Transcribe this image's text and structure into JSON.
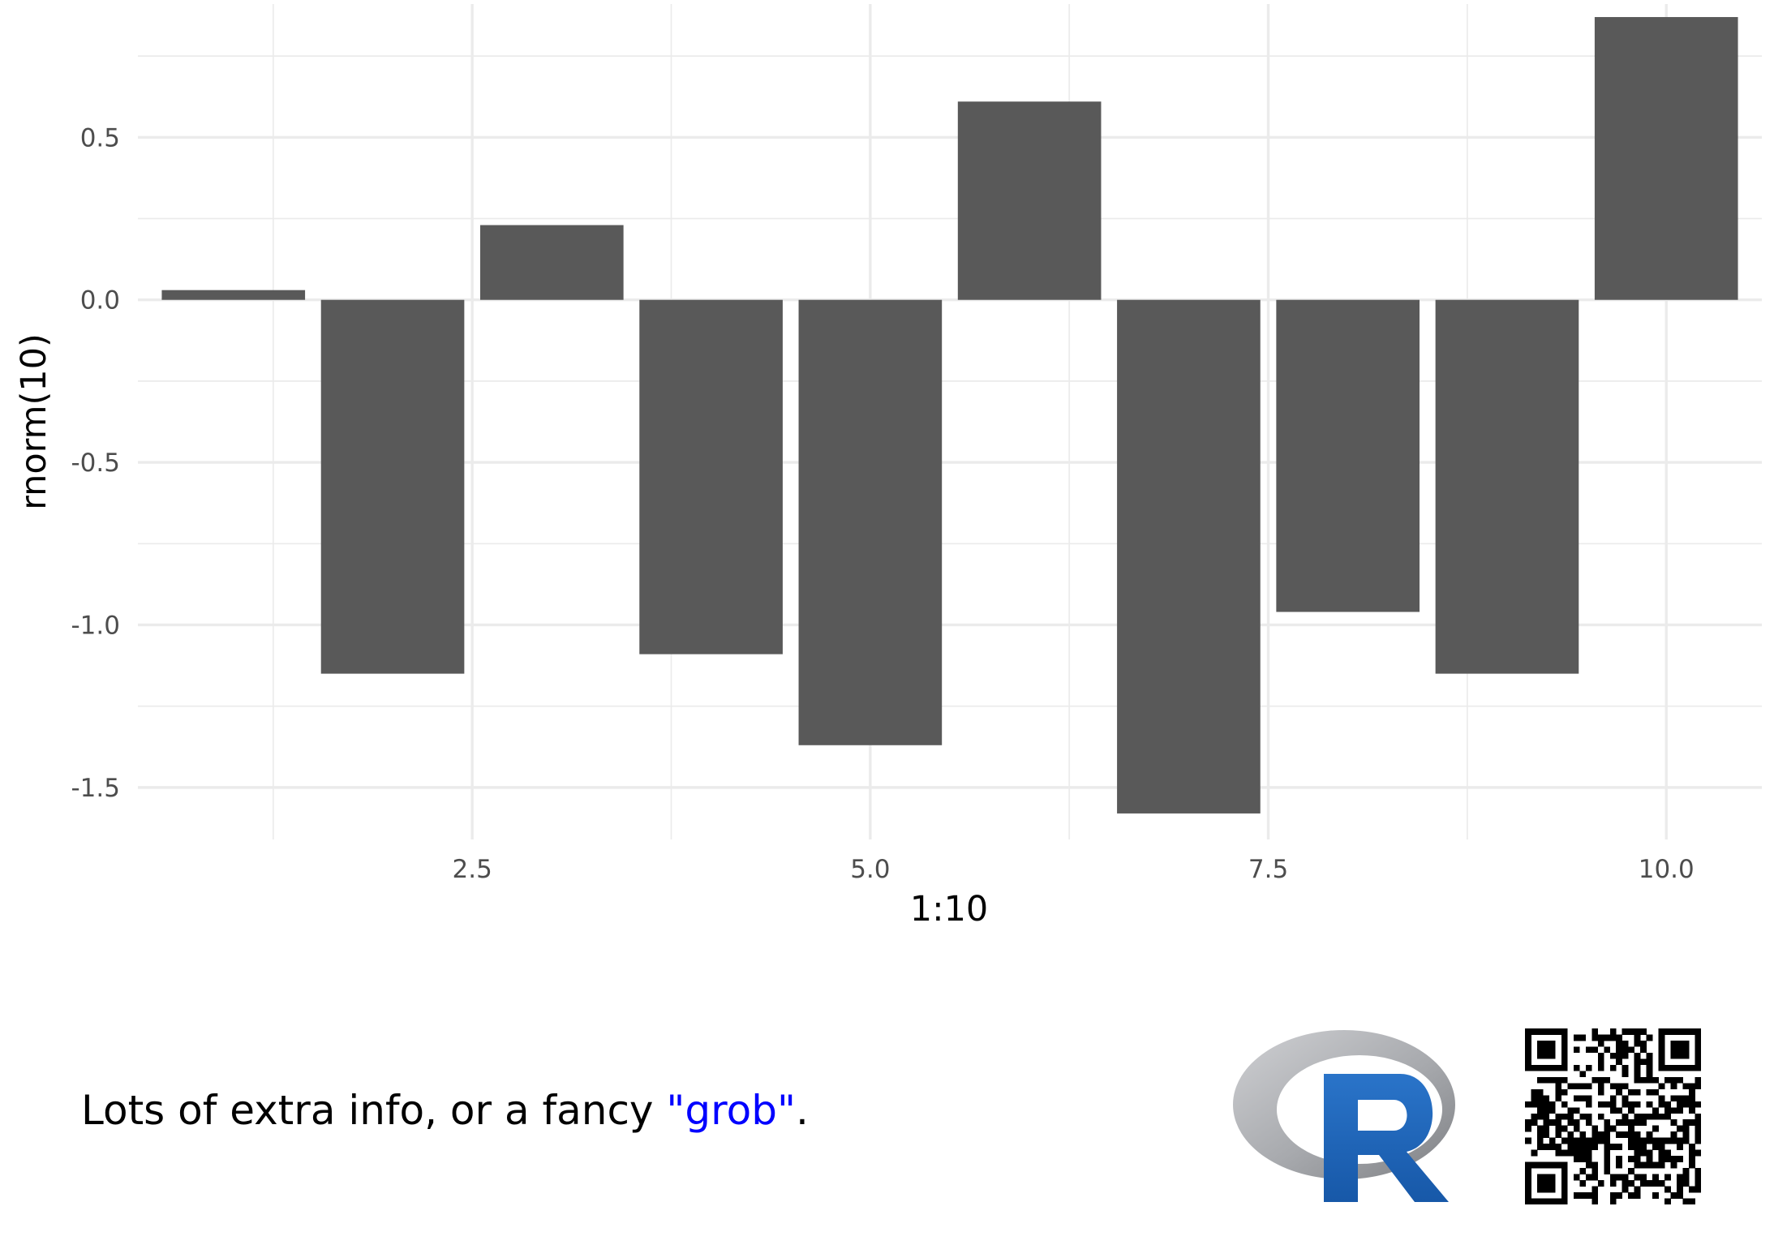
{
  "chart_data": {
    "type": "bar",
    "x": [
      1,
      2,
      3,
      4,
      5,
      6,
      7,
      8,
      9,
      10
    ],
    "values": [
      0.03,
      -1.15,
      0.23,
      -1.09,
      -1.37,
      0.61,
      -1.58,
      -0.96,
      -1.15,
      0.87
    ],
    "xlabel": "1:10",
    "ylabel": "rnorm(10)",
    "x_ticks": [
      "2.5",
      "5.0",
      "7.5",
      "10.0"
    ],
    "y_ticks": [
      "0.5",
      "0.0",
      "-0.5",
      "-1.0",
      "-1.5"
    ],
    "xlim": [
      0.4,
      10.6
    ],
    "ylim": [
      -1.66,
      0.91
    ],
    "grid": true,
    "colors": {
      "bar": "#595959",
      "grid": "#ebebeb",
      "grob_text": "#0000ff"
    }
  },
  "caption": {
    "prefix": "Lots of extra info, or a fancy ",
    "grob": "\"grob\"",
    "suffix": "."
  },
  "logo": {
    "letter": "R",
    "colors": {
      "ring": "#a7a9ad",
      "letter": "#1f65b7"
    }
  },
  "qr": {
    "icon": "qr-code-icon"
  }
}
